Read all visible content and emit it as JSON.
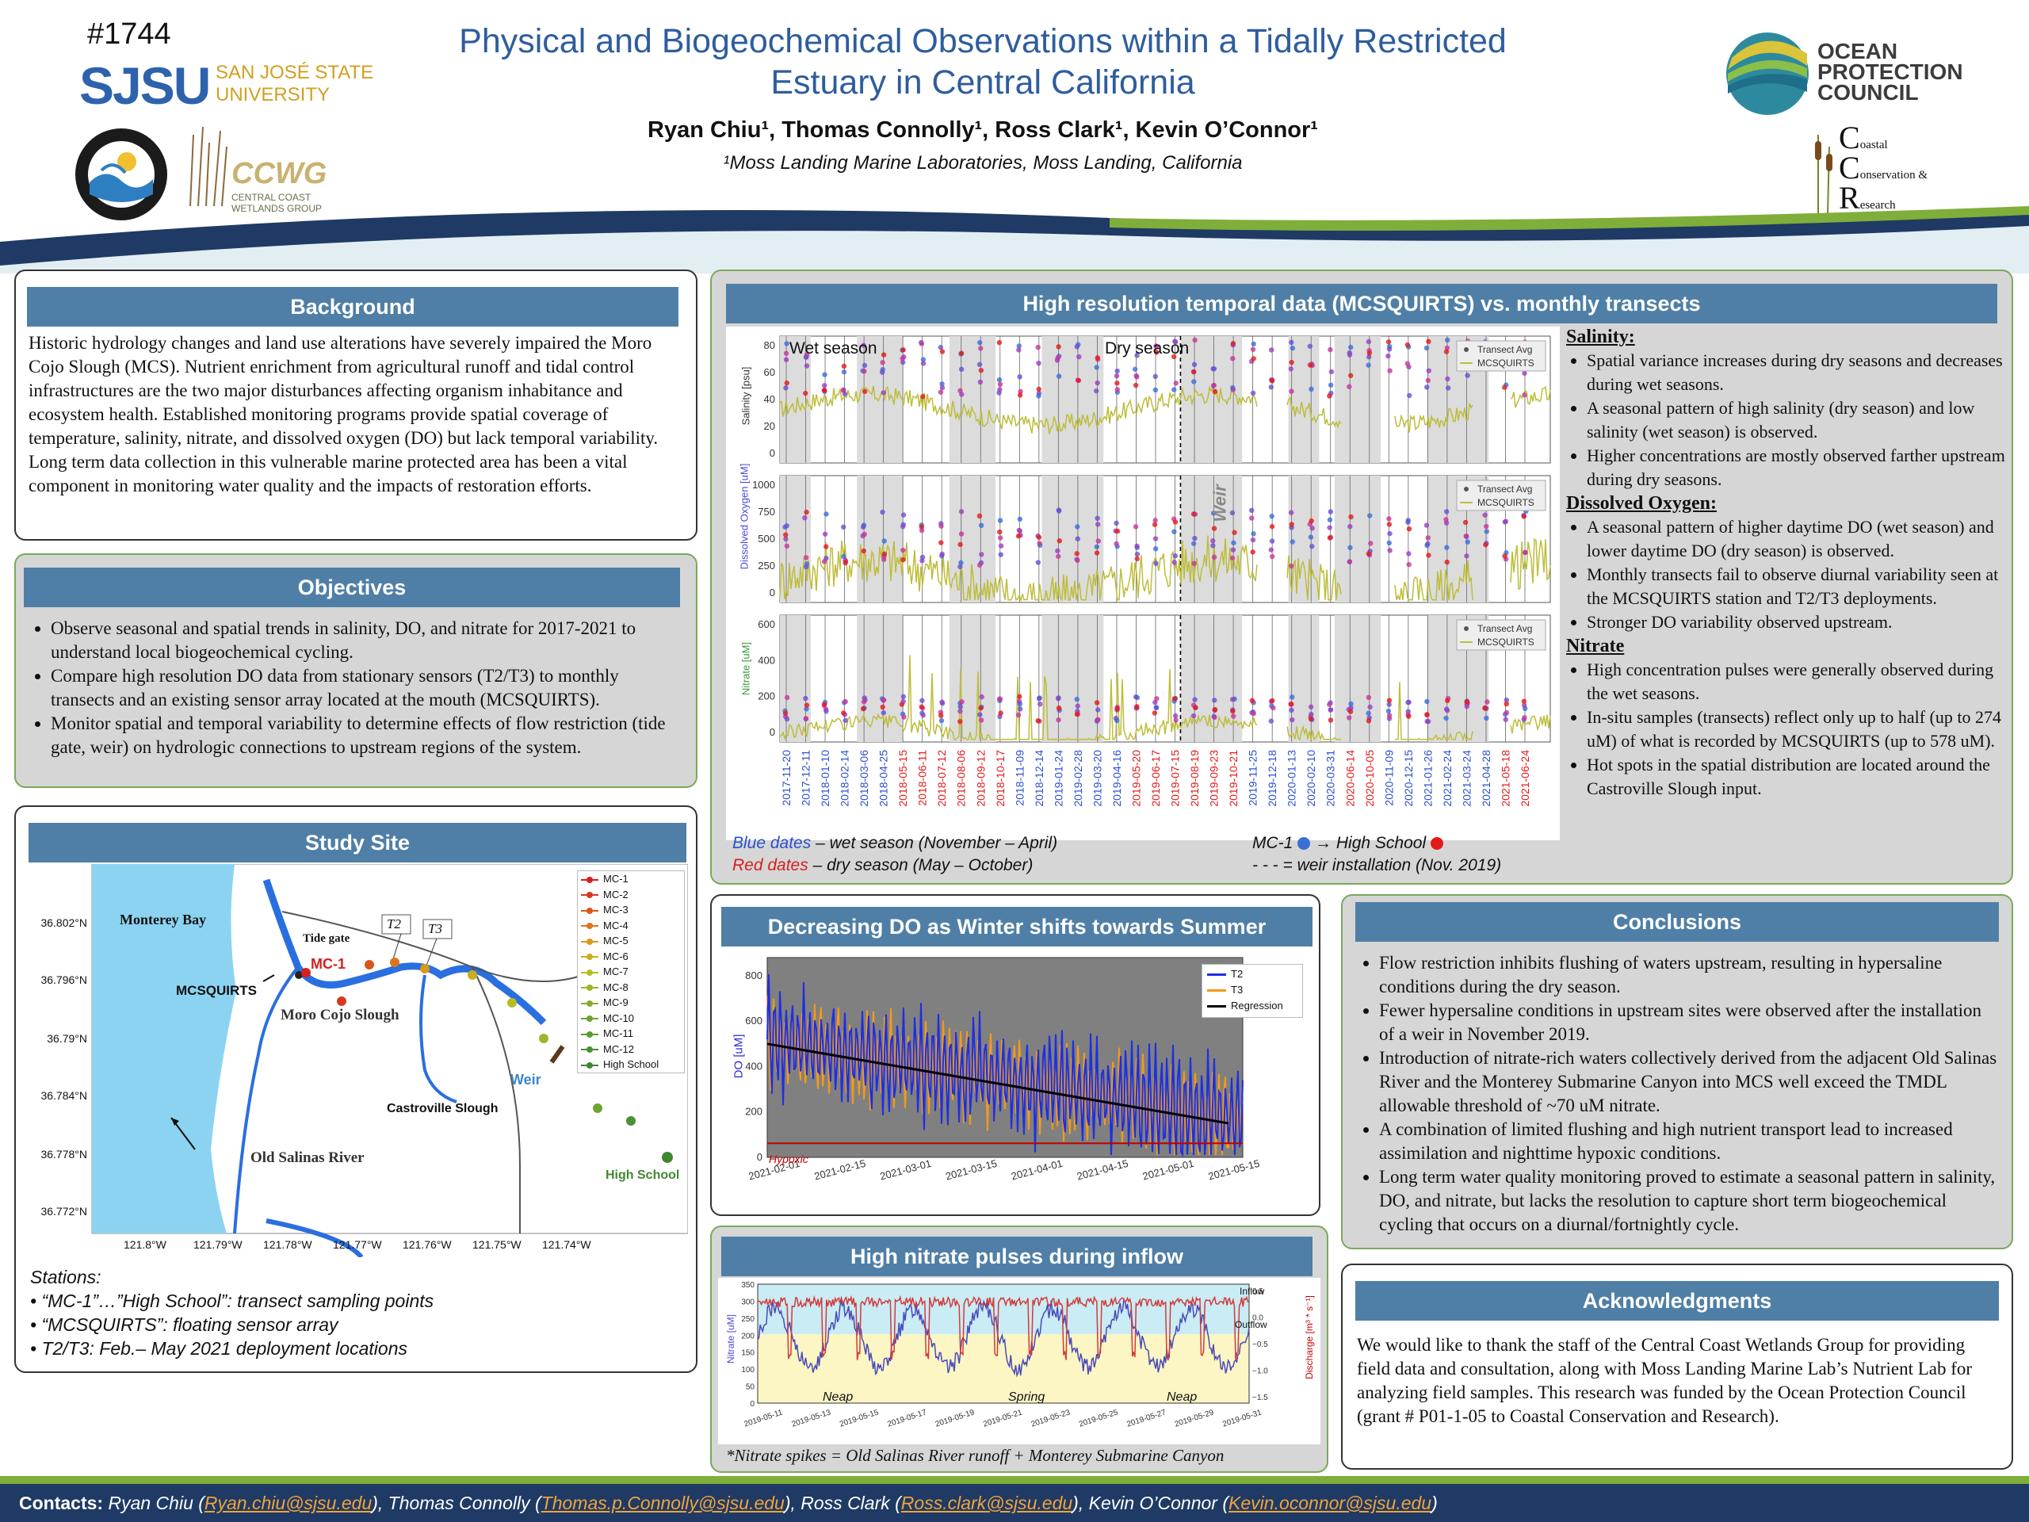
{
  "header": {
    "poster_id": "#1744",
    "title_line1": "Physical and Biogeochemical Observations within a Tidally Restricted",
    "title_line2": "Estuary in Central California",
    "authors": "Ryan Chiu¹, Thomas Connolly¹, Ross Clark¹, Kevin O’Connor¹",
    "affiliation": "¹Moss Landing Marine Laboratories, Moss Landing, California",
    "logos": {
      "sjsu": "SJSU",
      "sjsu_name_line1": "SAN JOSÉ STATE",
      "sjsu_name_line2": "UNIVERSITY",
      "mlml": "Moss Landing Marine Laboratories",
      "ccwg": "CCWG",
      "ccwg_sub1": "CENTRAL COAST",
      "ccwg_sub2": "WETLANDS GROUP",
      "opc_line1": "OCEAN",
      "opc_line2": "PROTECTION",
      "opc_line3": "COUNCIL",
      "ccr_c1": "C",
      "ccr_t1": "oastal",
      "ccr_c2": "C",
      "ccr_t2": "onservation &",
      "ccr_c3": "R",
      "ccr_t3": "esearch"
    }
  },
  "background": {
    "title": "Background",
    "text": "Historic hydrology changes and land use alterations have severely impaired the Moro Cojo Slough (MCS). Nutrient enrichment from agricultural runoff and tidal control infrastructures are the two major disturbances affecting organism inhabitance and ecosystem health. Established monitoring programs provide spatial coverage of temperature, salinity, nitrate, and dissolved oxygen (DO) but lack temporal variability. Long term data collection in this vulnerable marine protected area has been a vital component in monitoring water quality and the impacts of restoration efforts."
  },
  "objectives": {
    "title": "Objectives",
    "items": [
      "Observe seasonal and spatial trends in salinity, DO, and nitrate for 2017-2021 to understand local biogeochemical cycling.",
      "Compare high resolution DO data from stationary sensors (T2/T3) to monthly transects and an existing sensor array located at the mouth (MCSQUIRTS).",
      "Monitor spatial and temporal variability to determine effects of flow restriction (tide gate, weir) on hydrologic connections to upstream regions of the system."
    ]
  },
  "study_site": {
    "title": "Study Site",
    "map_labels": {
      "bay": "Monterey Bay",
      "tide_gate": "Tide gate",
      "mc1": "MC-1",
      "mcsquirts": "MCSQUIRTS",
      "moro": "Moro Cojo Slough",
      "t2": "T2",
      "t3": "T3",
      "weir": "Weir",
      "castroville": "Castroville Slough",
      "old_salinas": "Old Salinas River",
      "high_school": "High School"
    },
    "lat_ticks": [
      "36.802°N",
      "36.796°N",
      "36.79°N",
      "36.784°N",
      "36.778°N",
      "36.772°N"
    ],
    "lon_ticks": [
      "121.8°W",
      "121.79°W",
      "121.78°W",
      "121.77°W",
      "121.76°W",
      "121.75°W",
      "121.74°W"
    ],
    "legend": [
      {
        "name": "MC-1",
        "color": "#d62020"
      },
      {
        "name": "MC-2",
        "color": "#d63a1e"
      },
      {
        "name": "MC-3",
        "color": "#d9571c"
      },
      {
        "name": "MC-4",
        "color": "#dc741a"
      },
      {
        "name": "MC-5",
        "color": "#d99a1a"
      },
      {
        "name": "MC-6",
        "color": "#c9ae1f"
      },
      {
        "name": "MC-7",
        "color": "#b5bb26"
      },
      {
        "name": "MC-8",
        "color": "#9cb52b"
      },
      {
        "name": "MC-9",
        "color": "#84ac2f"
      },
      {
        "name": "MC-10",
        "color": "#6ea331"
      },
      {
        "name": "MC-11",
        "color": "#5b9a33"
      },
      {
        "name": "MC-12",
        "color": "#4b9034"
      },
      {
        "name": "High School",
        "color": "#3f8732"
      }
    ],
    "notes_title": "Stations:",
    "notes": [
      "“MC-1”…”High School”: transect sampling points",
      "“MCSQUIRTS”: floating sensor array",
      "T2/T3: Feb.– May 2021 deployment locations"
    ]
  },
  "hires": {
    "title": "High resolution temporal data (MCSQUIRTS) vs. monthly transects",
    "wet_label": "Wet season",
    "dry_label": "Dry season",
    "weir_label": "Weir",
    "legend_avg": "Transect Avg",
    "legend_mcs": "MCSQUIRTS",
    "sal_ylabel": "Salinity [psu]",
    "do_ylabel": "Dissolved Oxygen [uM]",
    "nit_ylabel": "Nitrate [uM]",
    "sal_ticks": [
      "80",
      "60",
      "40",
      "20",
      "0"
    ],
    "do_ticks": [
      "1000",
      "750",
      "500",
      "250",
      "0"
    ],
    "nit_ticks": [
      "600",
      "400",
      "200",
      "0"
    ],
    "dates": [
      {
        "d": "2017-11-20",
        "c": "blue"
      },
      {
        "d": "2017-12-11",
        "c": "blue"
      },
      {
        "d": "2018-01-10",
        "c": "blue"
      },
      {
        "d": "2018-02-14",
        "c": "blue"
      },
      {
        "d": "2018-03-06",
        "c": "blue"
      },
      {
        "d": "2018-04-25",
        "c": "blue"
      },
      {
        "d": "2018-05-15",
        "c": "red"
      },
      {
        "d": "2018-06-11",
        "c": "red"
      },
      {
        "d": "2018-07-12",
        "c": "red"
      },
      {
        "d": "2018-08-06",
        "c": "red"
      },
      {
        "d": "2018-09-12",
        "c": "red"
      },
      {
        "d": "2018-10-17",
        "c": "red"
      },
      {
        "d": "2018-11-09",
        "c": "blue"
      },
      {
        "d": "2018-12-14",
        "c": "blue"
      },
      {
        "d": "2019-01-24",
        "c": "blue"
      },
      {
        "d": "2019-02-28",
        "c": "blue"
      },
      {
        "d": "2019-03-20",
        "c": "blue"
      },
      {
        "d": "2019-04-16",
        "c": "blue"
      },
      {
        "d": "2019-05-20",
        "c": "red"
      },
      {
        "d": "2019-06-17",
        "c": "red"
      },
      {
        "d": "2019-07-15",
        "c": "red"
      },
      {
        "d": "2019-08-19",
        "c": "red"
      },
      {
        "d": "2019-09-23",
        "c": "red"
      },
      {
        "d": "2019-10-21",
        "c": "red"
      },
      {
        "d": "2019-11-25",
        "c": "blue"
      },
      {
        "d": "2019-12-18",
        "c": "blue"
      },
      {
        "d": "2020-01-13",
        "c": "blue"
      },
      {
        "d": "2020-02-10",
        "c": "blue"
      },
      {
        "d": "2020-03-31",
        "c": "blue"
      },
      {
        "d": "2020-06-14",
        "c": "red"
      },
      {
        "d": "2020-10-05",
        "c": "red"
      },
      {
        "d": "2020-11-09",
        "c": "blue"
      },
      {
        "d": "2020-12-15",
        "c": "blue"
      },
      {
        "d": "2021-01-26",
        "c": "blue"
      },
      {
        "d": "2021-02-24",
        "c": "blue"
      },
      {
        "d": "2021-03-24",
        "c": "blue"
      },
      {
        "d": "2021-04-28",
        "c": "blue"
      },
      {
        "d": "2021-05-18",
        "c": "red"
      },
      {
        "d": "2021-06-24",
        "c": "red"
      }
    ],
    "key_blue": "Blue dates",
    "key_blue_rest": " – wet season (November – April)",
    "key_red": "Red dates",
    "key_red_rest": " – dry season (May – October)",
    "key_mc1": "MC-1",
    "key_arrow": "→",
    "key_hs": "High School",
    "key_weir": "- - - = weir installation (Nov. 2019)",
    "notes": {
      "sal_head": "Salinity:",
      "sal": [
        "Spatial variance increases during dry seasons and decreases during wet seasons.",
        "A seasonal pattern of high salinity (dry season) and low salinity (wet season) is observed.",
        "Higher concentrations are mostly observed farther upstream during dry seasons."
      ],
      "do_head": "Dissolved Oxygen:",
      "do": [
        "A seasonal pattern of higher daytime DO (wet season) and lower daytime DO (dry season) is observed.",
        "Monthly transects fail to observe diurnal variability seen at the MCSQUIRTS station and T2/T3 deployments.",
        "Stronger DO variability observed upstream."
      ],
      "nit_head": "Nitrate",
      "nit": [
        "High concentration pulses were generally observed during the wet seasons.",
        "In-situ samples (transects) reflect only up to half (up to 274 uM) of what is recorded by MCSQUIRTS (up to 578 uM).",
        "Hot spots in the spatial distribution are located around the Castroville Slough input."
      ]
    }
  },
  "do_panel": {
    "title": "Decreasing DO as Winter shifts towards Summer",
    "ylabel": "DO [uM]",
    "legend": [
      "T2",
      "T3",
      "Regression"
    ],
    "hypoxic": "Hypoxic",
    "y_ticks": [
      "800",
      "600",
      "400",
      "200",
      "0"
    ],
    "x_ticks": [
      "2021-02-01",
      "2021-02-15",
      "2021-03-01",
      "2021-03-15",
      "2021-04-01",
      "2021-04-15",
      "2021-05-01",
      "2021-05-15"
    ]
  },
  "nitrate_panel": {
    "title": "High nitrate pulses during inflow",
    "ylabel_left": "Nitrate [uM]",
    "ylabel_right": "Discharge [m³ * s⁻¹]",
    "inflow": "Inflow",
    "outflow": "Outflow",
    "neap1": "Neap",
    "spring": "Spring",
    "neap2": "Neap",
    "y_left": [
      "350",
      "300",
      "250",
      "200",
      "150",
      "100",
      "50",
      "0"
    ],
    "y_right": [
      "0.5",
      "0.0",
      "−0.5",
      "−1.0",
      "−1.5"
    ],
    "x_ticks": [
      "2019-05-11",
      "2019-05-13",
      "2019-05-15",
      "2019-05-17",
      "2019-05-19",
      "2019-05-21",
      "2019-05-23",
      "2019-05-25",
      "2019-05-27",
      "2019-05-29",
      "2019-05-31"
    ],
    "caption": "*Nitrate spikes = Old Salinas River runoff + Monterey Submarine Canyon"
  },
  "conclusions": {
    "title": "Conclusions",
    "items": [
      "Flow restriction inhibits flushing of waters upstream, resulting in hypersaline conditions during the dry season.",
      "Fewer hypersaline conditions in upstream sites were observed after the installation of a weir in November 2019.",
      "Introduction of nitrate-rich waters collectively derived from the adjacent Old Salinas River and the Monterey Submarine Canyon into MCS well exceed the TMDL allowable threshold of ~70 uM nitrate.",
      "A combination of limited flushing and high nutrient transport lead to increased assimilation and nighttime hypoxic conditions.",
      "Long term water quality monitoring proved to estimate a seasonal pattern in salinity, DO, and nitrate, but lacks the resolution to capture short term biogeochemical cycling that occurs on a diurnal/fortnightly cycle."
    ]
  },
  "acknowledgments": {
    "title": "Acknowledgments",
    "text": "We would like to thank the staff of the Central Coast Wetlands Group for providing field data and consultation, along with Moss Landing Marine Lab’s Nutrient Lab for analyzing field samples. This research was funded by the Ocean Protection Council (grant # P01-1-05 to Coastal Conservation and Research)."
  },
  "footer": {
    "label": "Contacts",
    "c1_name": "Ryan Chiu (",
    "c1_email": "Ryan.chiu@sjsu.edu",
    "c2_name": "), Thomas Connolly (",
    "c2_email": "Thomas.p.Connolly@sjsu.edu",
    "c3_name": "), Ross Clark (",
    "c3_email": "Ross.clark@sjsu.edu",
    "c4_name": "), Kevin O’Connor (",
    "c4_email": "Kevin.oconnor@sjsu.edu",
    "end": ")"
  },
  "colors": {
    "accent": "#4f7fa6",
    "panel_border": "#7aa95a",
    "title": "#2e5d9e",
    "band": "#1f3a64"
  }
}
